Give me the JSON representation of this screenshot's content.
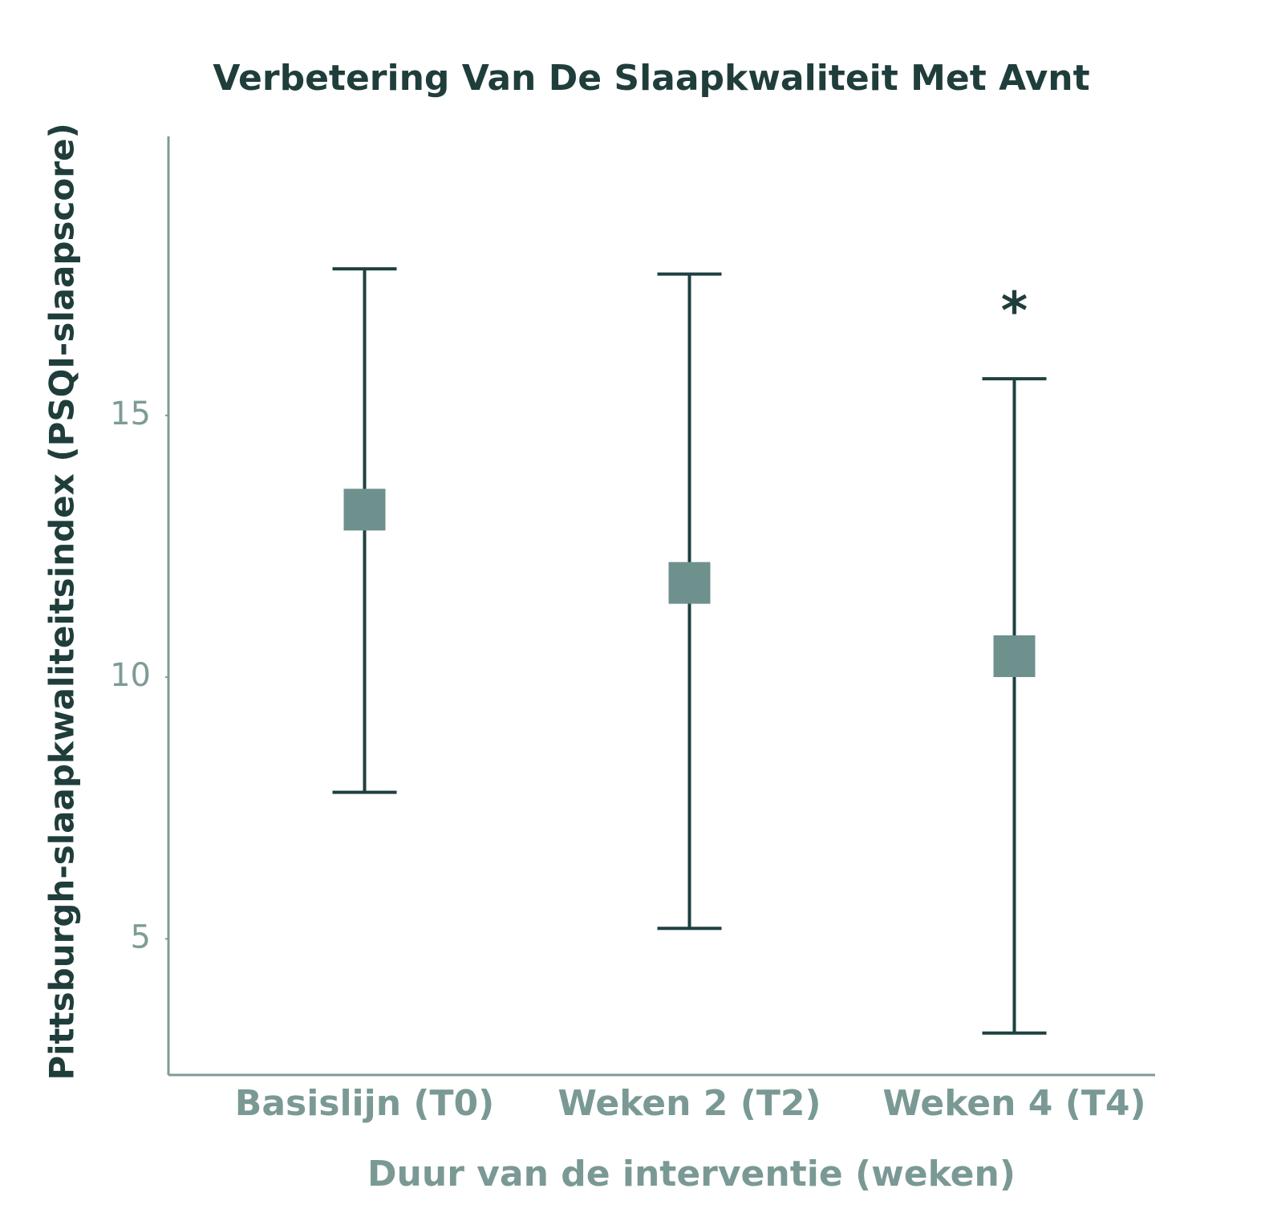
{
  "chart_data": {
    "type": "errorbar",
    "title": "Verbetering Van De Slaapkwaliteit Met Avnt",
    "xlabel": "Duur van de interventie (weken)",
    "ylabel": "Pittsburgh-slaapkwaliteitsindex (PSQI-slaapscore)",
    "categories": [
      "Basislijn (T0)",
      "Weken 2 (T2)",
      "Weken 4 (T4)"
    ],
    "values": [
      13.2,
      11.8,
      10.4
    ],
    "lower": [
      7.8,
      5.2,
      3.2
    ],
    "upper": [
      17.8,
      17.7,
      15.7
    ],
    "color": "#6e918d",
    "bar_color": "#1e4040",
    "annotations": [
      "*"
    ],
    "ylim": [
      2.4,
      20.3
    ],
    "yticks": [
      5,
      10,
      15
    ],
    "grid": false
  }
}
